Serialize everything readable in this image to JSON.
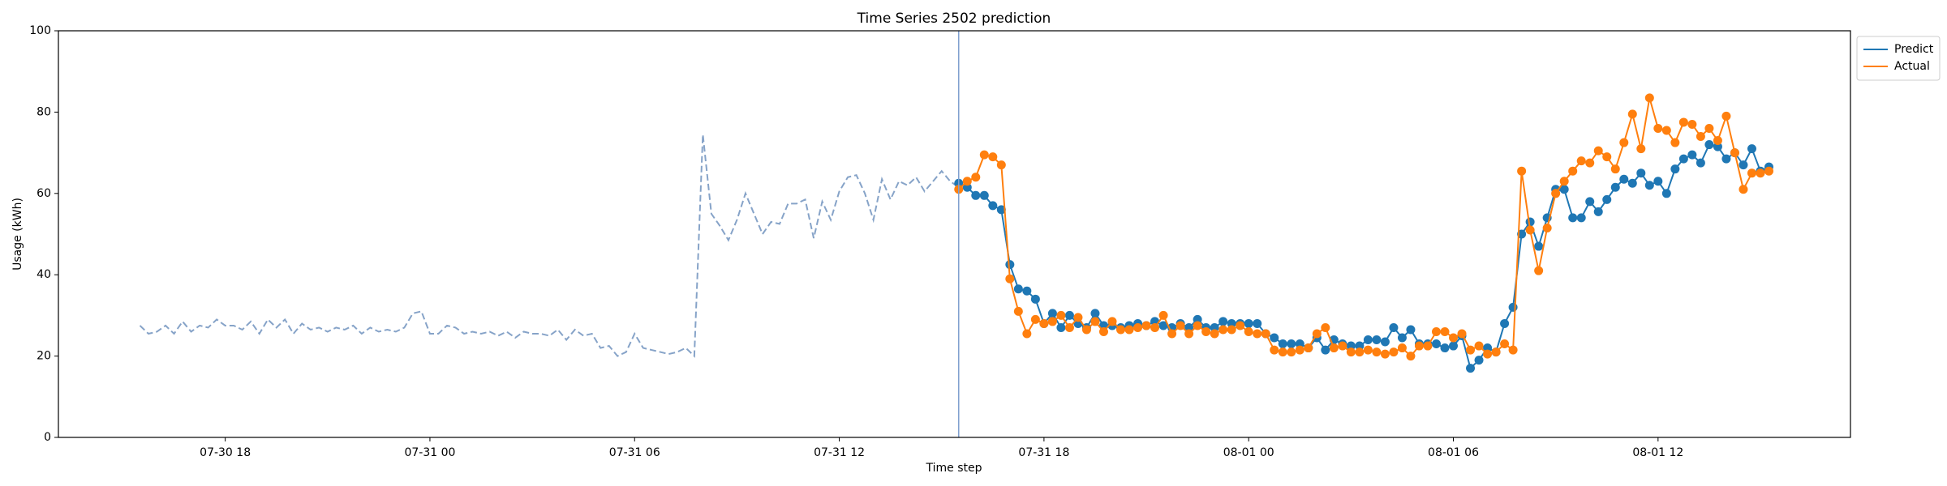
{
  "chart_data": {
    "type": "line",
    "title": "Time Series 2502 prediction",
    "x_label": "Time step",
    "y_label": "Usage (kWh)",
    "xlim": [
      13.11,
      65.64
    ],
    "ylim": [
      0,
      100
    ],
    "xticks": [
      {
        "value": 18,
        "label": "07-30 18"
      },
      {
        "value": 24,
        "label": "07-31 00"
      },
      {
        "value": 30,
        "label": "07-31 06"
      },
      {
        "value": 36,
        "label": "07-31 12"
      },
      {
        "value": 42,
        "label": "07-31 18"
      },
      {
        "value": 48,
        "label": "08-01 00"
      },
      {
        "value": 54,
        "label": "08-01 06"
      },
      {
        "value": 60,
        "label": "08-01 12"
      }
    ],
    "yticks": [
      0,
      20,
      40,
      60,
      80,
      100
    ],
    "grid": false,
    "legend": "outside upper right",
    "vline": {
      "x": 39.5,
      "color": "#7f9fcf"
    },
    "series": [
      {
        "color": "#86a3c8",
        "dashed": true,
        "marker": false,
        "x": [
          15.5,
          15.75,
          16,
          16.25,
          16.5,
          16.75,
          17,
          17.25,
          17.5,
          17.75,
          18,
          18.25,
          18.5,
          18.75,
          19,
          19.25,
          19.5,
          19.75,
          20,
          20.25,
          20.5,
          20.75,
          21,
          21.25,
          21.5,
          21.75,
          22,
          22.25,
          22.5,
          22.75,
          23,
          23.25,
          23.5,
          23.75,
          24,
          24.25,
          24.5,
          24.75,
          25,
          25.25,
          25.5,
          25.75,
          26,
          26.25,
          26.5,
          26.75,
          27,
          27.25,
          27.5,
          27.75,
          28,
          28.25,
          28.5,
          28.75,
          29,
          29.25,
          29.5,
          29.75,
          30,
          30.25,
          30.5,
          30.75,
          31,
          31.25,
          31.5,
          31.75,
          32,
          32.25,
          32.5,
          32.75,
          33,
          33.25,
          33.5,
          33.75,
          34,
          34.25,
          34.5,
          34.75,
          35,
          35.25,
          35.5,
          35.75,
          36,
          36.25,
          36.5,
          36.75,
          37,
          37.25,
          37.5,
          37.75,
          38,
          38.25,
          38.5,
          38.75,
          39,
          39.25,
          39.5
        ],
        "values": [
          27.5,
          25.5,
          26,
          27.5,
          25.5,
          28.5,
          26,
          27.5,
          27,
          29,
          27.5,
          27.5,
          26.5,
          28.5,
          25.5,
          29,
          27,
          29,
          25.5,
          28,
          26.5,
          27,
          26,
          27,
          26.5,
          27.5,
          25.5,
          27,
          26,
          26.5,
          26,
          27,
          30.5,
          31,
          25.5,
          25.5,
          27.5,
          27,
          25.5,
          26,
          25.5,
          26,
          25,
          26,
          24.5,
          26,
          25.5,
          25.5,
          25,
          26.5,
          24,
          26.5,
          25,
          25.5,
          22,
          22.5,
          20,
          21,
          25.5,
          22,
          21.5,
          21,
          20.5,
          21,
          22,
          20,
          74.5,
          55,
          52,
          48.5,
          53.5,
          60,
          55,
          50,
          53,
          52.5,
          57.5,
          57.5,
          58.5,
          49,
          58,
          53.5,
          60.5,
          64,
          64.5,
          60,
          53.5,
          63.5,
          58.5,
          63,
          62,
          64,
          60.5,
          63,
          65.5,
          63,
          61.5
        ]
      },
      {
        "name": "Predict",
        "color": "#1f77b4",
        "dashed": false,
        "marker": true,
        "x": [
          39.5,
          39.75,
          40,
          40.25,
          40.5,
          40.75,
          41,
          41.25,
          41.5,
          41.75,
          42,
          42.25,
          42.5,
          42.75,
          43,
          43.25,
          43.5,
          43.75,
          44,
          44.25,
          44.5,
          44.75,
          45,
          45.25,
          45.5,
          45.75,
          46,
          46.25,
          46.5,
          46.75,
          47,
          47.25,
          47.5,
          47.75,
          48,
          48.25,
          48.5,
          48.75,
          49,
          49.25,
          49.5,
          49.75,
          50,
          50.25,
          50.5,
          50.75,
          51,
          51.25,
          51.5,
          51.75,
          52,
          52.25,
          52.5,
          52.75,
          53,
          53.25,
          53.5,
          53.75,
          54,
          54.25,
          54.5,
          54.75,
          55,
          55.25,
          55.5,
          55.75,
          56,
          56.25,
          56.5,
          56.75,
          57,
          57.25,
          57.5,
          57.75,
          58,
          58.25,
          58.5,
          58.75,
          59,
          59.25,
          59.5,
          59.75,
          60,
          60.25,
          60.5,
          60.75,
          61,
          61.25,
          61.5,
          61.75,
          62,
          62.25,
          62.5,
          62.75,
          63,
          63.25
        ],
        "values": [
          62.5,
          61.5,
          59.5,
          59.5,
          57,
          56,
          42.5,
          36.5,
          36,
          34,
          28,
          30.5,
          27,
          30,
          28,
          27,
          30.5,
          27.5,
          27.5,
          27,
          27.5,
          28,
          27.5,
          28.5,
          27.5,
          27,
          28,
          27,
          29,
          27,
          27,
          28.5,
          28,
          28,
          28,
          28,
          25.5,
          24.5,
          23,
          23,
          23,
          22,
          24.5,
          21.5,
          24,
          23,
          22.5,
          22.5,
          24,
          24,
          23.5,
          27,
          24.5,
          26.5,
          23,
          23,
          23,
          22,
          22.5,
          25,
          17,
          19,
          22,
          21,
          28,
          32,
          50,
          53,
          47,
          54,
          61,
          61,
          54,
          54,
          58,
          55.5,
          58.5,
          61.5,
          63.5,
          62.5,
          65,
          62,
          63,
          60,
          66,
          68.5,
          69.5,
          67.5,
          72,
          71.5,
          68.5,
          70,
          67,
          71,
          65.5,
          66.5
        ]
      },
      {
        "name": "Actual",
        "color": "#ff7f0e",
        "dashed": false,
        "marker": true,
        "x": [
          39.5,
          39.75,
          40,
          40.25,
          40.5,
          40.75,
          41,
          41.25,
          41.5,
          41.75,
          42,
          42.25,
          42.5,
          42.75,
          43,
          43.25,
          43.5,
          43.75,
          44,
          44.25,
          44.5,
          44.75,
          45,
          45.25,
          45.5,
          45.75,
          46,
          46.25,
          46.5,
          46.75,
          47,
          47.25,
          47.5,
          47.75,
          48,
          48.25,
          48.5,
          48.75,
          49,
          49.25,
          49.5,
          49.75,
          50,
          50.25,
          50.5,
          50.75,
          51,
          51.25,
          51.5,
          51.75,
          52,
          52.25,
          52.5,
          52.75,
          53,
          53.25,
          53.5,
          53.75,
          54,
          54.25,
          54.5,
          54.75,
          55,
          55.25,
          55.5,
          55.75,
          56,
          56.25,
          56.5,
          56.75,
          57,
          57.25,
          57.5,
          57.75,
          58,
          58.25,
          58.5,
          58.75,
          59,
          59.25,
          59.5,
          59.75,
          60,
          60.25,
          60.5,
          60.75,
          61,
          61.25,
          61.5,
          61.75,
          62,
          62.25,
          62.5,
          62.75,
          63,
          63.25
        ],
        "values": [
          61,
          63,
          64,
          69.5,
          69,
          67,
          39,
          31,
          25.5,
          29,
          28,
          28.5,
          30,
          27,
          29.5,
          26.5,
          28.5,
          26,
          28.5,
          26.5,
          26.5,
          27,
          27.5,
          27,
          30,
          25.5,
          27.5,
          25.5,
          27.5,
          26,
          25.5,
          26.5,
          26.5,
          27.5,
          26,
          25.5,
          25.5,
          21.5,
          21,
          21,
          21.5,
          22,
          25.5,
          27,
          22,
          22.5,
          21,
          21,
          21.5,
          21,
          20.5,
          21,
          22,
          20,
          22.5,
          22.5,
          26,
          26,
          24.5,
          25.5,
          21.5,
          22.5,
          20.5,
          21,
          23,
          21.5,
          65.5,
          51,
          41,
          51.5,
          60,
          63,
          65.5,
          68,
          67.5,
          70.5,
          69,
          66,
          72.5,
          79.5,
          71,
          83.5,
          76,
          75.5,
          72.5,
          77.5,
          77,
          74,
          76,
          73,
          79,
          70,
          61,
          65,
          65,
          65.5
        ]
      }
    ]
  }
}
